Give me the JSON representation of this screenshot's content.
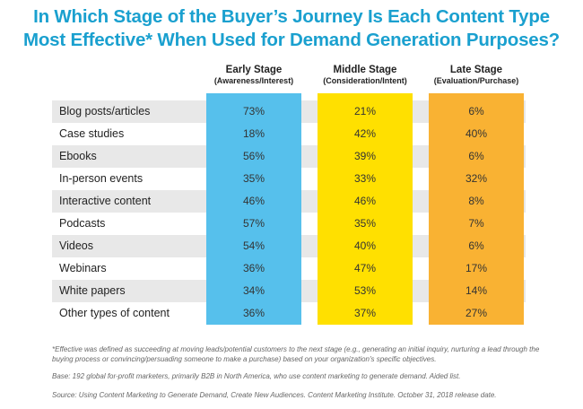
{
  "title_line1": "In Which Stage of the Buyer’s Journey Is Each Content Type",
  "title_line2": "Most Effective* When Used for Demand Generation Purposes?",
  "chart_data": {
    "type": "table",
    "columns": [
      {
        "name": "Early Stage",
        "sub": "(Awareness/Interest)",
        "color": "#56c0ec"
      },
      {
        "name": "Middle Stage",
        "sub": "(Consideration/Intent)",
        "color": "#ffe000"
      },
      {
        "name": "Late Stage",
        "sub": "(Evaluation/Purchase)",
        "color": "#f9b233"
      }
    ],
    "rows": [
      {
        "label": "Blog posts/articles",
        "values": [
          "73%",
          "21%",
          "6%"
        ]
      },
      {
        "label": "Case studies",
        "values": [
          "18%",
          "42%",
          "40%"
        ]
      },
      {
        "label": "Ebooks",
        "values": [
          "56%",
          "39%",
          "6%"
        ]
      },
      {
        "label": "In-person events",
        "values": [
          "35%",
          "33%",
          "32%"
        ]
      },
      {
        "label": "Interactive content",
        "values": [
          "46%",
          "46%",
          "8%"
        ]
      },
      {
        "label": "Podcasts",
        "values": [
          "57%",
          "35%",
          "7%"
        ]
      },
      {
        "label": "Videos",
        "values": [
          "54%",
          "40%",
          "6%"
        ]
      },
      {
        "label": "Webinars",
        "values": [
          "36%",
          "47%",
          "17%"
        ]
      },
      {
        "label": "White papers",
        "values": [
          "34%",
          "53%",
          "14%"
        ]
      },
      {
        "label": "Other types of content",
        "values": [
          "36%",
          "37%",
          "27%"
        ]
      }
    ]
  },
  "footnotes": {
    "effective": "*Effective was defined as succeeding at moving leads/potential customers to the next stage (e.g., generating an initial inquiry, nurturing a lead through the buying process or convincing/persuading someone to make a purchase) based on your organization's specific objectives.",
    "base": "Base: 192 global for-profit marketers, primarily B2B in North America, who use content marketing to generate demand. Aided list.",
    "source": "Source: Using Content Marketing to Generate Demand, Create New Audiences. Content Marketing Institute. October 31, 2018 release date."
  }
}
